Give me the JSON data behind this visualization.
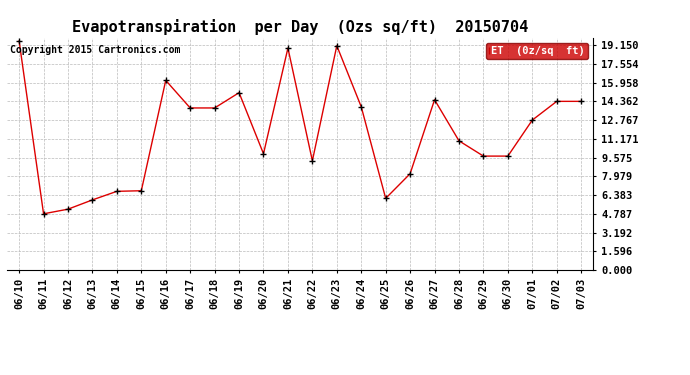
{
  "title": "Evapotranspiration  per Day  (Ozs sq/ft)  20150704",
  "copyright": "Copyright 2015 Cartronics.com",
  "legend_label": "ET  (0z/sq  ft)",
  "x_labels": [
    "06/10",
    "06/11",
    "06/12",
    "06/13",
    "06/14",
    "06/15",
    "06/16",
    "06/17",
    "06/18",
    "06/19",
    "06/20",
    "06/21",
    "06/22",
    "06/23",
    "06/24",
    "06/25",
    "06/26",
    "06/27",
    "06/28",
    "06/29",
    "06/30",
    "07/01",
    "07/02",
    "07/03"
  ],
  "y_values": [
    19.5,
    4.787,
    5.18,
    5.97,
    6.7,
    6.75,
    16.15,
    13.8,
    13.8,
    15.1,
    9.9,
    18.9,
    9.3,
    19.1,
    13.9,
    6.1,
    8.2,
    14.5,
    11.0,
    9.7,
    9.7,
    12.767,
    14.362,
    14.362
  ],
  "ylim": [
    0.0,
    19.8
  ],
  "yticks": [
    0.0,
    1.596,
    3.192,
    4.787,
    6.383,
    7.979,
    9.575,
    11.171,
    12.767,
    14.362,
    15.958,
    17.554,
    19.15
  ],
  "line_color": "#dd0000",
  "marker_color": "#000000",
  "background_color": "#ffffff",
  "grid_color": "#bbbbbb",
  "title_fontsize": 11,
  "tick_fontsize": 7.5,
  "copyright_fontsize": 7,
  "legend_bg": "#cc0000",
  "legend_fg": "#ffffff",
  "legend_fontsize": 7.5
}
